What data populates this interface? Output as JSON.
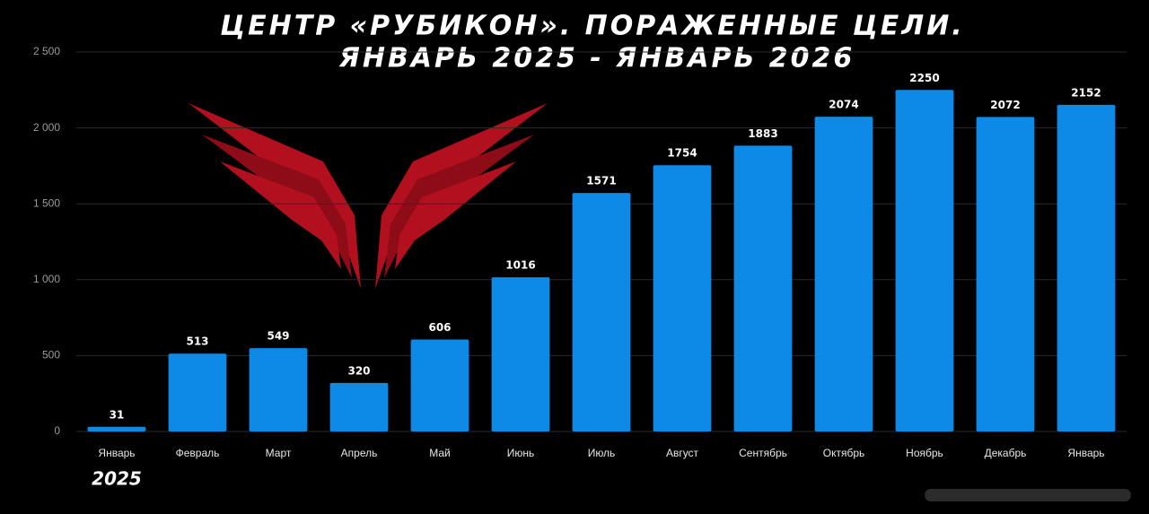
{
  "chart_data": {
    "type": "bar",
    "title": "ЦЕНТР «РУБИКОН». ПОРАЖЕННЫЕ ЦЕЛИ.",
    "subtitle": "ЯНВАРЬ 2025 - ЯНВАРЬ 2026",
    "annotation": "2025",
    "categories": [
      "Январь",
      "Февраль",
      "Март",
      "Апрель",
      "Май",
      "Июнь",
      "Июль",
      "Август",
      "Сентябрь",
      "Октябрь",
      "Ноябрь",
      "Декабрь",
      "Январь"
    ],
    "values": [
      31,
      513,
      549,
      320,
      606,
      1016,
      1571,
      1754,
      1883,
      2074,
      2250,
      2072,
      2152
    ],
    "color": "#0d8ae6",
    "ylim": [
      0,
      2500
    ],
    "yticks": [
      0,
      500,
      {
        "value": 1000,
        "label": "1 000"
      },
      {
        "value": 1500,
        "label": "1 500"
      },
      {
        "value": 2000,
        "label": "2 000"
      },
      {
        "value": 2500,
        "label": "2 500"
      }
    ],
    "grid": true
  }
}
